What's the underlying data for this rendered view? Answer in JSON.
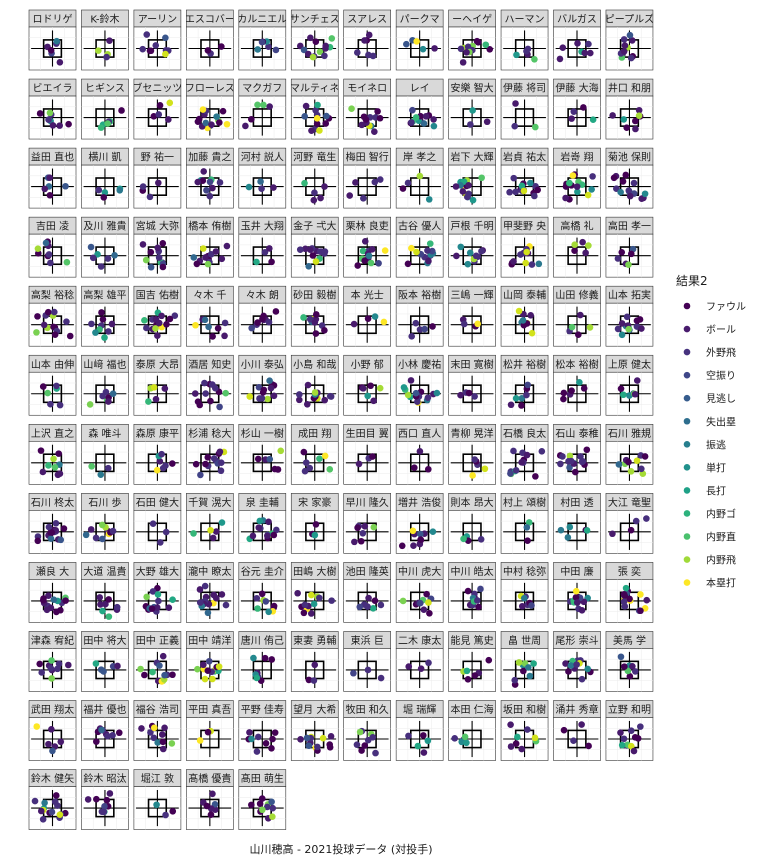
{
  "chart_data": {
    "type": "scatter",
    "caption": "山川穂高 - 2021投球データ (対投手)",
    "legend": {
      "title": "結果2",
      "placement": "right",
      "entries": [
        "ファウル",
        "ボール",
        "外野飛",
        "空振り",
        "見逃し",
        "失出塁",
        "振逃",
        "単打",
        "長打",
        "内野ゴ",
        "内野直",
        "内野飛",
        "本塁打"
      ],
      "colors": [
        "#440154",
        "#481a6c",
        "#472f7d",
        "#414487",
        "#39568c",
        "#31688e",
        "#2a788e",
        "#23888e",
        "#1f988b",
        "#22a884",
        "#35b779",
        "#54c568",
        "#7ad151",
        "#a5db36",
        "#d2e21b",
        "#fde725"
      ]
    },
    "strike_zone": {
      "x": [
        -0.83,
        0.83
      ],
      "y": [
        1.5,
        3.5
      ]
    },
    "axes": {
      "xlim": [
        -2.2,
        2.2
      ],
      "ylim": [
        0,
        5
      ],
      "grid": true
    },
    "panels": [
      "ロドリゲ",
      "K-鈴木",
      "アーリン",
      "エスコバー",
      "カルニエル",
      "サンチェス",
      "スアレス",
      "パークマ",
      "ーヘイゲ",
      "ハーマン",
      "バルガス",
      "ピープルズ",
      "ビエイラ",
      "ヒギンス",
      "ブセニッツ",
      "フローレス",
      "マクガフ",
      "マルティネ",
      "モイネロ",
      "レイ",
      "安樂 智大",
      "伊藤 将司",
      "伊藤 大海",
      "井口 和朋",
      "益田 直也",
      "横川 凱",
      "野 祐一",
      "加藤 貴之",
      "河村 説人",
      "河野 竜生",
      "梅田 智行",
      "岸 孝之",
      "岩下 大輝",
      "岩貞 祐太",
      "岩嵜 翔",
      "菊池 保則",
      "吉田 凌",
      "及川 雅貴",
      "宮城 大弥",
      "橋本 侑樹",
      "玉井 大翔",
      "金子 弌大",
      "栗林 良吏",
      "古谷 優人",
      "戸根 千明",
      "甲斐野 央",
      "高橋 礼",
      "高田 孝一",
      "高梨 裕稔",
      "高梨 雄平",
      "国吉 佑樹",
      "々木 千",
      "々木 朗",
      "砂田 毅樹",
      "本 光士",
      "阪本 裕樹",
      "三嶋 一輝",
      "山岡 泰輔",
      "山田 修義",
      "山本 拓実",
      "山本 由伸",
      "山﨑 福也",
      "泰原 大昂",
      "酒居 知史",
      "小川 泰弘",
      "小島 和哉",
      "小野 郁",
      "小林 慶祐",
      "末田 寛樹",
      "松井 裕樹",
      "松本 裕樹",
      "上原 健太",
      "上沢 直之",
      "森 唯斗",
      "森原 康平",
      "杉浦 稔大",
      "杉山 一樹",
      "成田 翔",
      "生田目 翼",
      "西口 直人",
      "青柳 晃洋",
      "石橋 良太",
      "石山 泰稚",
      "石川 雅規",
      "石川 柊太",
      "石川 歩",
      "石田 健大",
      "千賀 滉大",
      "泉 圭輔",
      "宋 家豪",
      "早川 隆久",
      "増井 浩俊",
      "則本 昂大",
      "村上 頌樹",
      "村田 透",
      "大江 竜聖",
      "瀬良 大",
      "大道 温貴",
      "大野 雄大",
      "瀧中 瞭太",
      "谷元 圭介",
      "田嶋 大樹",
      "池田 隆英",
      "中川 虎大",
      "中川 皓太",
      "中村 稔弥",
      "中田 廉",
      "張 奕",
      "津森 宥紀",
      "田中 将大",
      "田中 正義",
      "田中 靖洋",
      "唐川 侑己",
      "東妻 勇輔",
      "東浜 巨",
      "二木 康太",
      "能見 篤史",
      "畠 世周",
      "尾形 崇斗",
      "美馬 学",
      "武田 翔太",
      "福井 優也",
      "福谷 浩司",
      "平田 真吾",
      "平野 佳寿",
      "望月 大希",
      "牧田 和久",
      "堀 瑞輝",
      "本田 仁海",
      "坂田 和樹",
      "涌井 秀章",
      "立野 和明",
      "鈴木 健矢",
      "鈴木 昭汰",
      "堀江 敦",
      "髙橋 優貴",
      "髙田 萌生"
    ],
    "seed": 20210701
  }
}
